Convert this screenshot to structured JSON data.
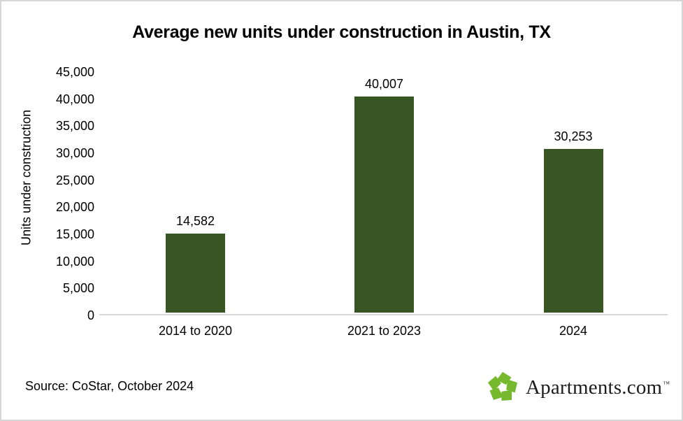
{
  "chart_data": {
    "type": "bar",
    "title": "Average new units under construction in Austin, TX",
    "xlabel": "",
    "ylabel": "Units under construction",
    "categories": [
      "2014 to 2020",
      "2021 to 2023",
      "2024"
    ],
    "values": [
      14582,
      40007,
      30253
    ],
    "value_labels": [
      "14,582",
      "40,007",
      "30,253"
    ],
    "ylim": [
      0,
      45000
    ],
    "ytick_step": 5000,
    "ytick_labels": [
      "45,000",
      "40,000",
      "35,000",
      "30,000",
      "25,000",
      "20,000",
      "15,000",
      "10,000",
      "5,000",
      "0"
    ],
    "grid": false,
    "legend": "none",
    "bar_color": "#375623",
    "axis_line_color": "#d9d9d9"
  },
  "footer": {
    "source": "Source: CoStar, October 2024",
    "logo_text": "Apartments.com",
    "trademark": "™",
    "logo_green": "#76B82E"
  }
}
